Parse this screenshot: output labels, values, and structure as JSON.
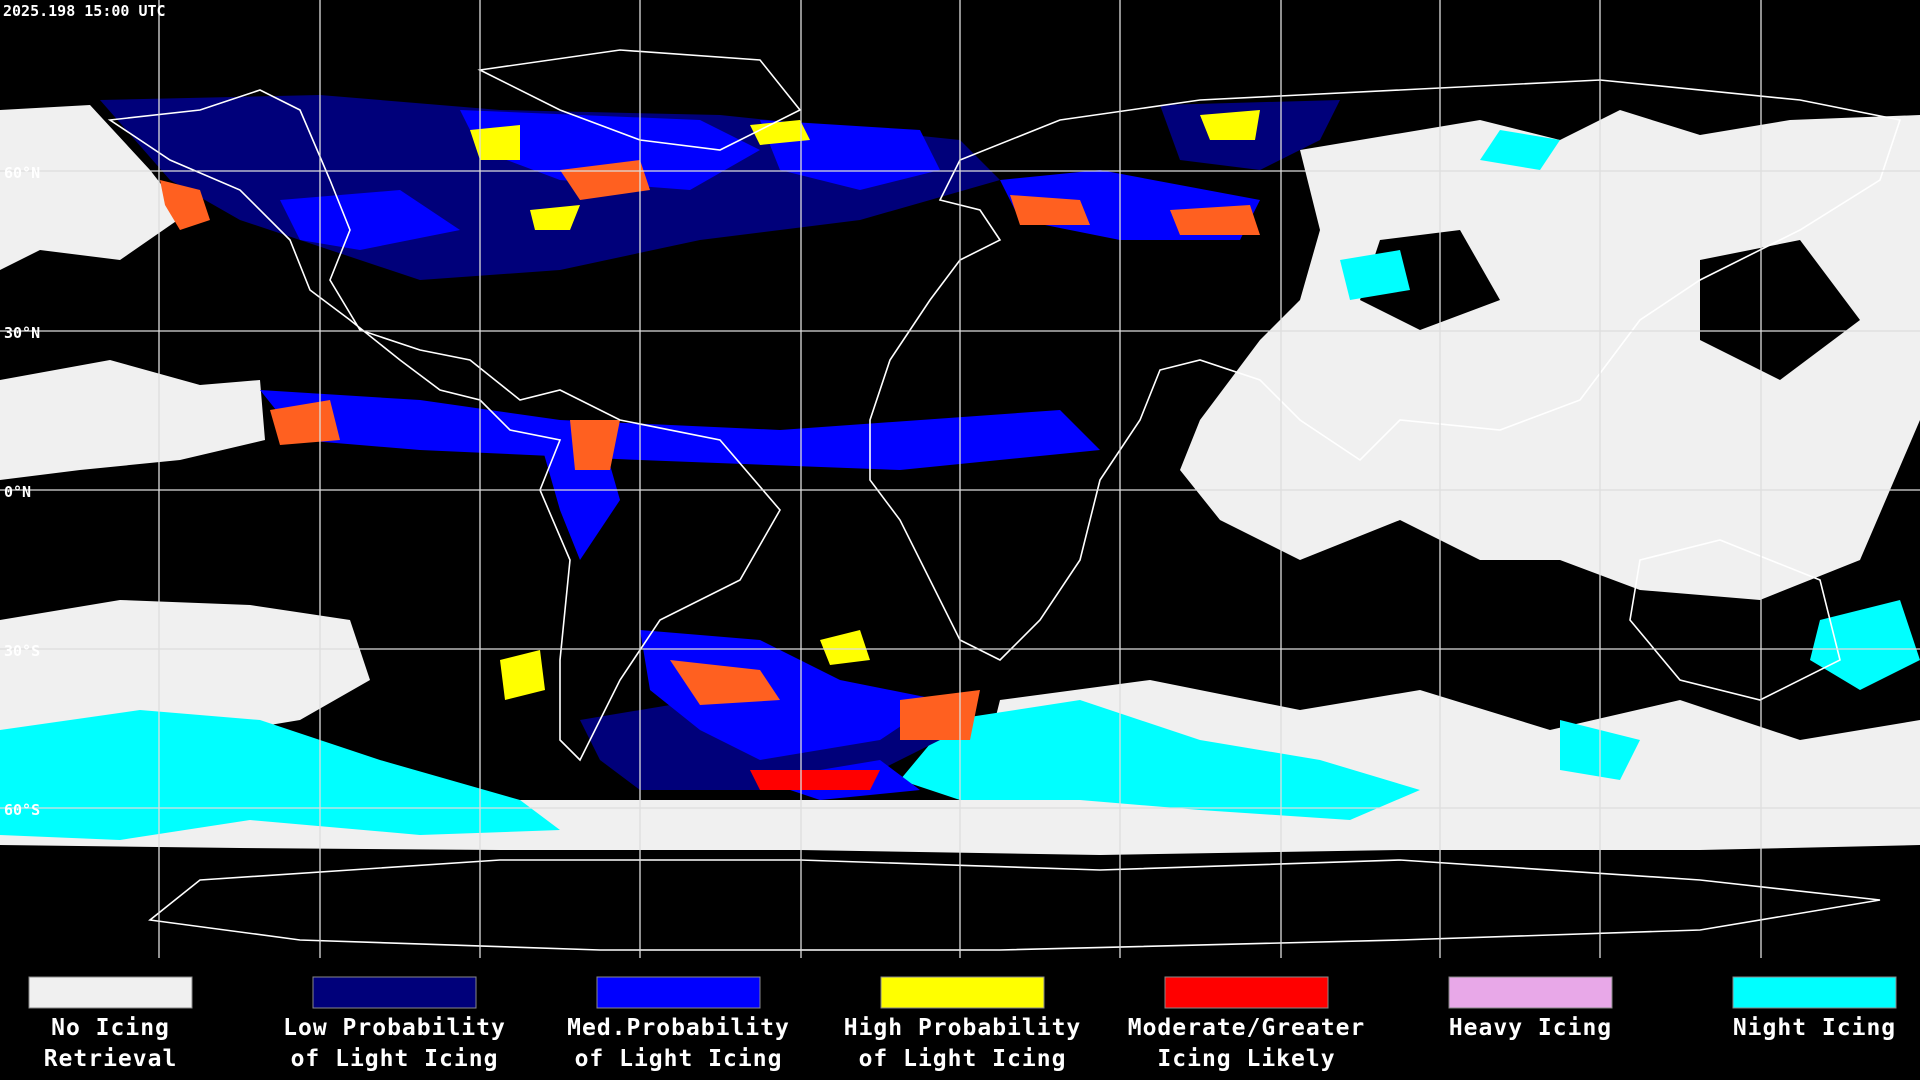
{
  "timestamp": "2025.198 15:00 UTC",
  "latitude_labels": [
    "60°N",
    "30°N",
    "0°N",
    "30°S",
    "60°S"
  ],
  "legend": [
    {
      "color": "#f0f0f0",
      "label": [
        "No Icing",
        "Retrieval"
      ]
    },
    {
      "color": "#00007a",
      "label": [
        "Low Probability",
        "of Light Icing"
      ]
    },
    {
      "color": "#0000ff",
      "label": [
        "Med.Probability",
        "of Light Icing"
      ]
    },
    {
      "color": "#ffff00",
      "label": [
        "High Probability",
        "of Light Icing"
      ]
    },
    {
      "color": "#ff0000",
      "label": [
        "Moderate/Greater",
        "Icing Likely"
      ]
    },
    {
      "color": "#e8a8e8",
      "label": [
        "Heavy Icing",
        ""
      ]
    },
    {
      "color": "#00ffff",
      "label": [
        "Night Icing",
        ""
      ]
    }
  ]
}
